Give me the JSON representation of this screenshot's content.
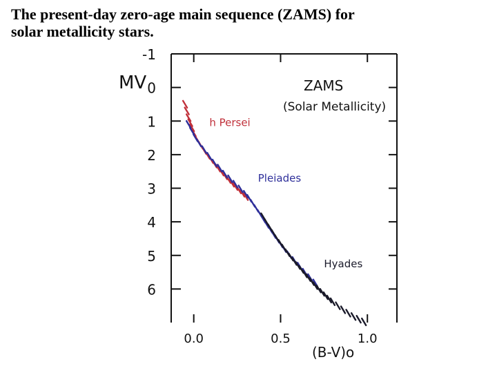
{
  "slide": {
    "title_line1": "The present-day zero-age main sequence (ZAMS) for",
    "title_line2": "solar metallicity stars."
  },
  "chart_data": {
    "type": "scatter",
    "title": "ZAMS",
    "subtitle": "(Solar Metallicity)",
    "xlabel": "(B-V)o",
    "ylabel": "MV",
    "xlim": [
      -0.13,
      1.17
    ],
    "ylim": [
      -1,
      7
    ],
    "y_inverted": true,
    "x_ticks": [
      0.0,
      0.5,
      1.0
    ],
    "x_tick_labels": [
      "0.0",
      "0.5",
      "1.0"
    ],
    "y_ticks": [
      -1,
      0,
      1,
      2,
      3,
      4,
      5,
      6
    ],
    "y_tick_labels": [
      "-1",
      "0",
      "1",
      "2",
      "3",
      "4",
      "5",
      "6"
    ],
    "grid": false,
    "series": [
      {
        "name": "h Persei",
        "color": "#c0303a",
        "x": [
          -0.05,
          -0.04,
          -0.03,
          -0.02,
          -0.01,
          0.0,
          0.02,
          0.04,
          0.06,
          0.08,
          0.1,
          0.12,
          0.14,
          0.16,
          0.18,
          0.2,
          0.22,
          0.24,
          0.26,
          0.28,
          0.3
        ],
        "y": [
          0.5,
          0.7,
          0.9,
          1.05,
          1.2,
          1.35,
          1.55,
          1.72,
          1.88,
          2.02,
          2.15,
          2.28,
          2.4,
          2.52,
          2.63,
          2.74,
          2.85,
          2.95,
          3.05,
          3.15,
          3.25
        ]
      },
      {
        "name": "Pleiades",
        "color": "#2e2f9a",
        "x": [
          -0.03,
          -0.01,
          0.01,
          0.03,
          0.06,
          0.09,
          0.12,
          0.15,
          0.18,
          0.21,
          0.24,
          0.27,
          0.3,
          0.32,
          0.34,
          0.36,
          0.38,
          0.4,
          0.42,
          0.44,
          0.46,
          0.48,
          0.5,
          0.52,
          0.55,
          0.58,
          0.61,
          0.64,
          0.67,
          0.7
        ],
        "y": [
          1.1,
          1.3,
          1.5,
          1.65,
          1.85,
          2.05,
          2.25,
          2.4,
          2.58,
          2.72,
          2.88,
          3.02,
          3.18,
          3.3,
          3.45,
          3.6,
          3.75,
          3.92,
          4.08,
          4.22,
          4.38,
          4.52,
          4.66,
          4.8,
          4.98,
          5.15,
          5.32,
          5.5,
          5.66,
          5.82
        ]
      },
      {
        "name": "Hyades",
        "color": "#1a1a2a",
        "x": [
          0.4,
          0.42,
          0.44,
          0.46,
          0.48,
          0.5,
          0.52,
          0.54,
          0.56,
          0.58,
          0.6,
          0.62,
          0.64,
          0.66,
          0.68,
          0.7,
          0.72,
          0.74,
          0.76,
          0.78,
          0.8,
          0.83,
          0.86,
          0.89,
          0.92,
          0.95,
          0.98
        ],
        "y": [
          3.85,
          4.02,
          4.18,
          4.34,
          4.5,
          4.64,
          4.78,
          4.92,
          5.05,
          5.18,
          5.3,
          5.42,
          5.55,
          5.66,
          5.78,
          5.9,
          6.0,
          6.1,
          6.2,
          6.3,
          6.38,
          6.5,
          6.62,
          6.72,
          6.82,
          6.9,
          6.98
        ]
      }
    ],
    "annotations": [
      {
        "text": "h Persei",
        "x": 0.09,
        "y": 1.15,
        "color": "#c0303a"
      },
      {
        "text": "Pleiades",
        "x": 0.37,
        "y": 2.8,
        "color": "#2e2f9a"
      },
      {
        "text": "Hyades",
        "x": 0.75,
        "y": 5.35,
        "color": "#1a1a2a"
      }
    ]
  }
}
